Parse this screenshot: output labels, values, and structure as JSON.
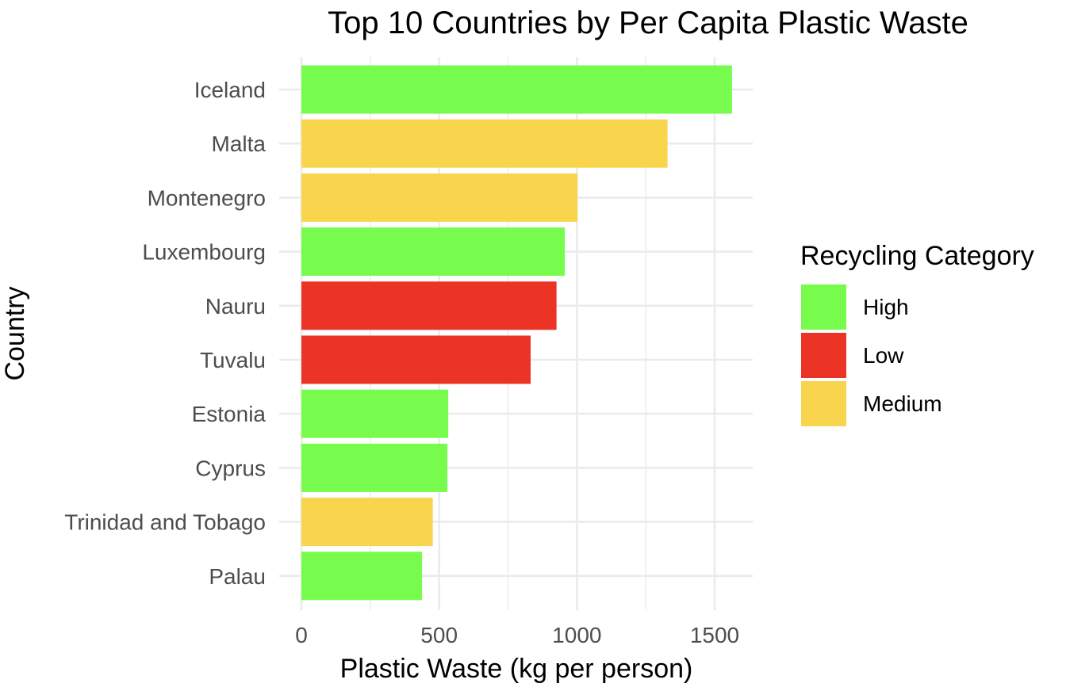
{
  "chart_data": {
    "type": "bar",
    "orientation": "horizontal",
    "title": "Top 10 Countries by Per Capita Plastic Waste",
    "xlabel": "Plastic Waste (kg per person)",
    "ylabel": "Country",
    "xlim": [
      0,
      1640
    ],
    "x_ticks": [
      0,
      500,
      1000,
      1500
    ],
    "x_tick_labels": [
      "0",
      "500",
      "1000",
      "1500"
    ],
    "grid": true,
    "legend": {
      "title": "Recycling Category",
      "position": "right",
      "entries": [
        {
          "label": "High",
          "color": "#77fc4e"
        },
        {
          "label": "Low",
          "color": "#eb3425"
        },
        {
          "label": "Medium",
          "color": "#f8d54c"
        }
      ]
    },
    "categories": [
      "Iceland",
      "Malta",
      "Montenegro",
      "Luxembourg",
      "Nauru",
      "Tuvalu",
      "Estonia",
      "Cyprus",
      "Trinidad and Tobago",
      "Palau"
    ],
    "values": [
      1563,
      1329,
      1002,
      956,
      926,
      832,
      533,
      530,
      477,
      438
    ],
    "recycling_category": [
      "High",
      "Medium",
      "Medium",
      "High",
      "Low",
      "Low",
      "High",
      "High",
      "Medium",
      "High"
    ]
  }
}
